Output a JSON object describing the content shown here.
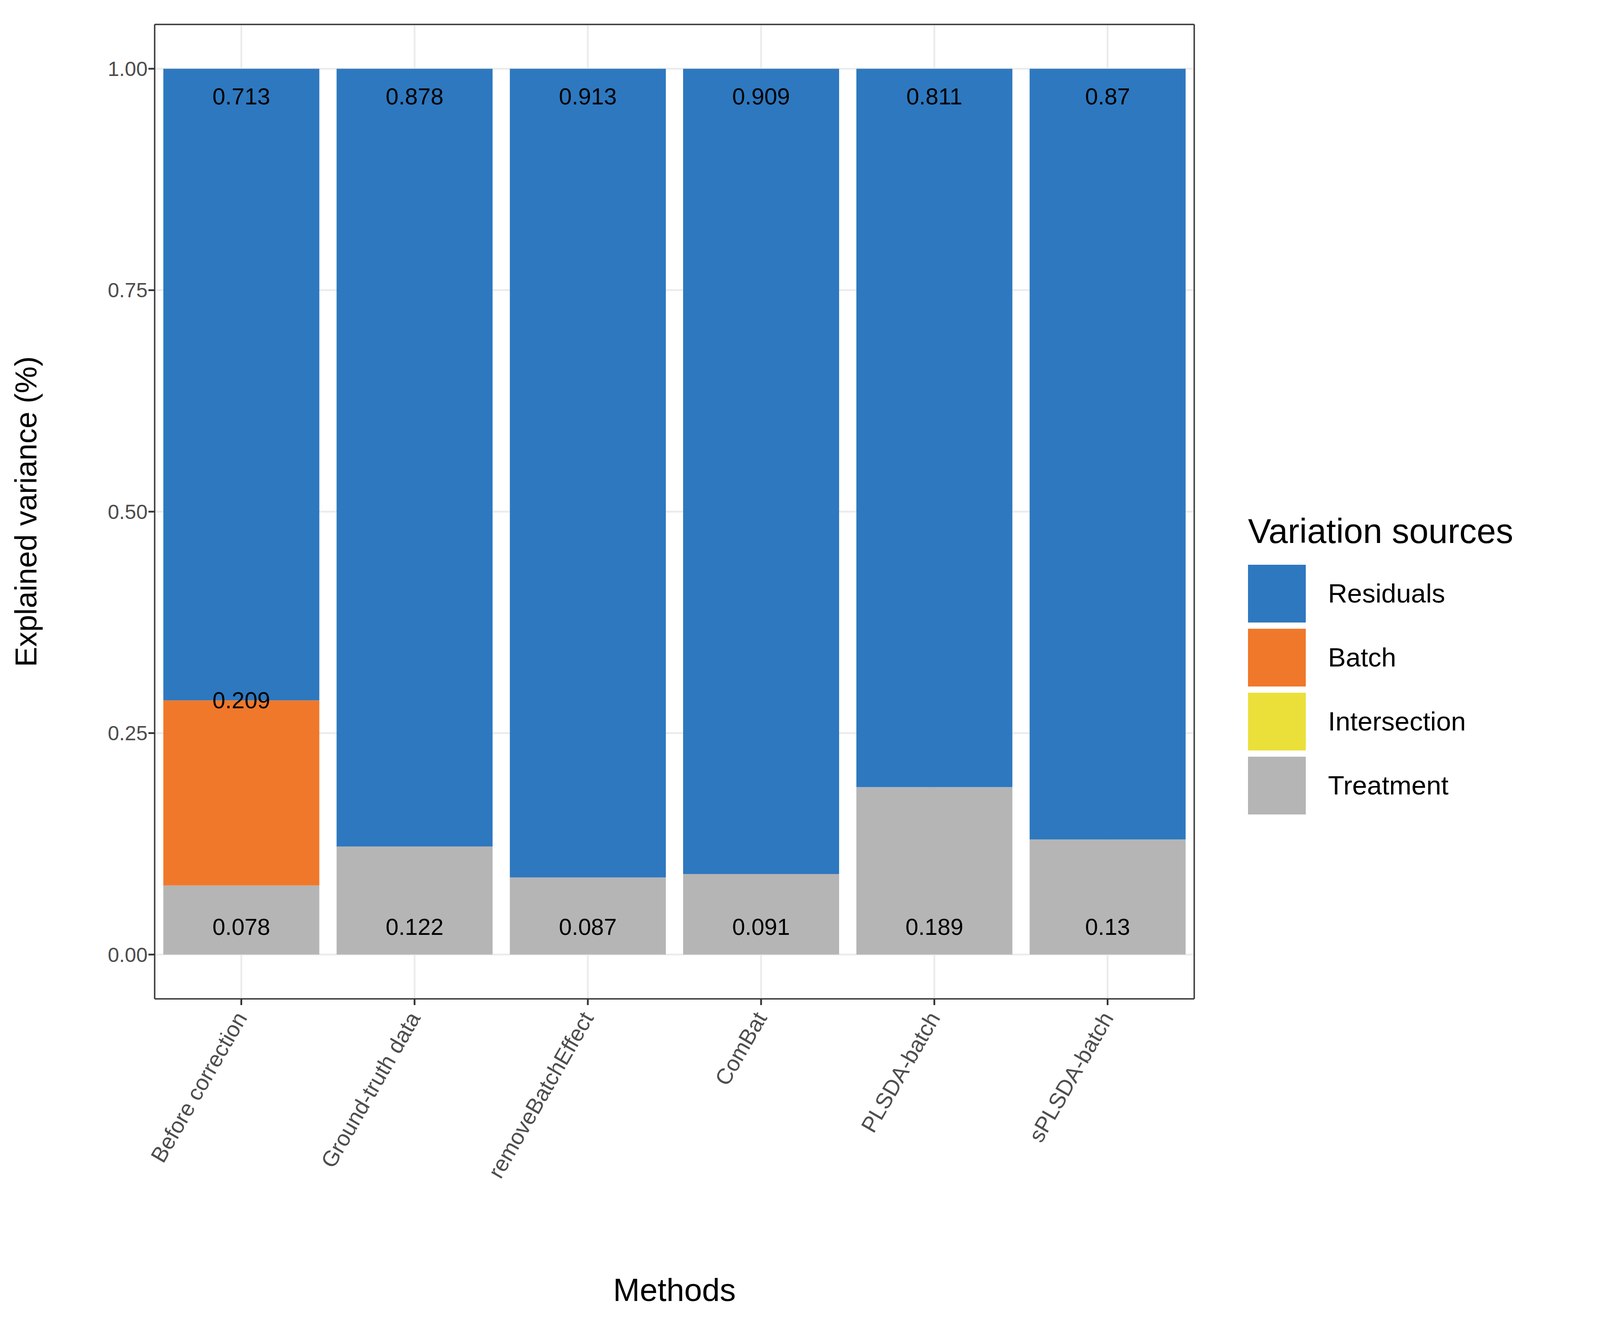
{
  "chart_data": {
    "type": "bar",
    "stacked": true,
    "data_labels": true,
    "grid": true,
    "legend": "right",
    "legend_title": "Variation sources",
    "x_label": "Methods",
    "y_label": "Explained variance (%)",
    "categories": [
      "Before correction",
      "Ground-truth data",
      "removeBatchEffect",
      "ComBat",
      "PLSDA-batch",
      "sPLSDA-batch"
    ],
    "series": [
      {
        "name": "Treatment",
        "color": "#B5B5B5",
        "values": [
          0.078,
          0.122,
          0.087,
          0.091,
          0.189,
          0.13
        ]
      },
      {
        "name": "Intersection",
        "color": "#EBE03A",
        "values": [
          0,
          0,
          0,
          0,
          0,
          0
        ]
      },
      {
        "name": "Batch",
        "color": "#F0782A",
        "values": [
          0.209,
          0,
          0,
          0,
          0,
          0
        ]
      },
      {
        "name": "Residuals",
        "color": "#2E78BF",
        "values": [
          0.713,
          0.878,
          0.913,
          0.909,
          0.811,
          0.87
        ]
      }
    ],
    "ylim": [
      -0.05,
      1.05
    ],
    "yticks": [
      {
        "value": 0,
        "label": "0.00"
      },
      {
        "value": 0.25,
        "label": "0.25"
      },
      {
        "value": 0.5,
        "label": "0.50"
      },
      {
        "value": 0.75,
        "label": "0.75"
      },
      {
        "value": 1,
        "label": "1.00"
      }
    ]
  }
}
